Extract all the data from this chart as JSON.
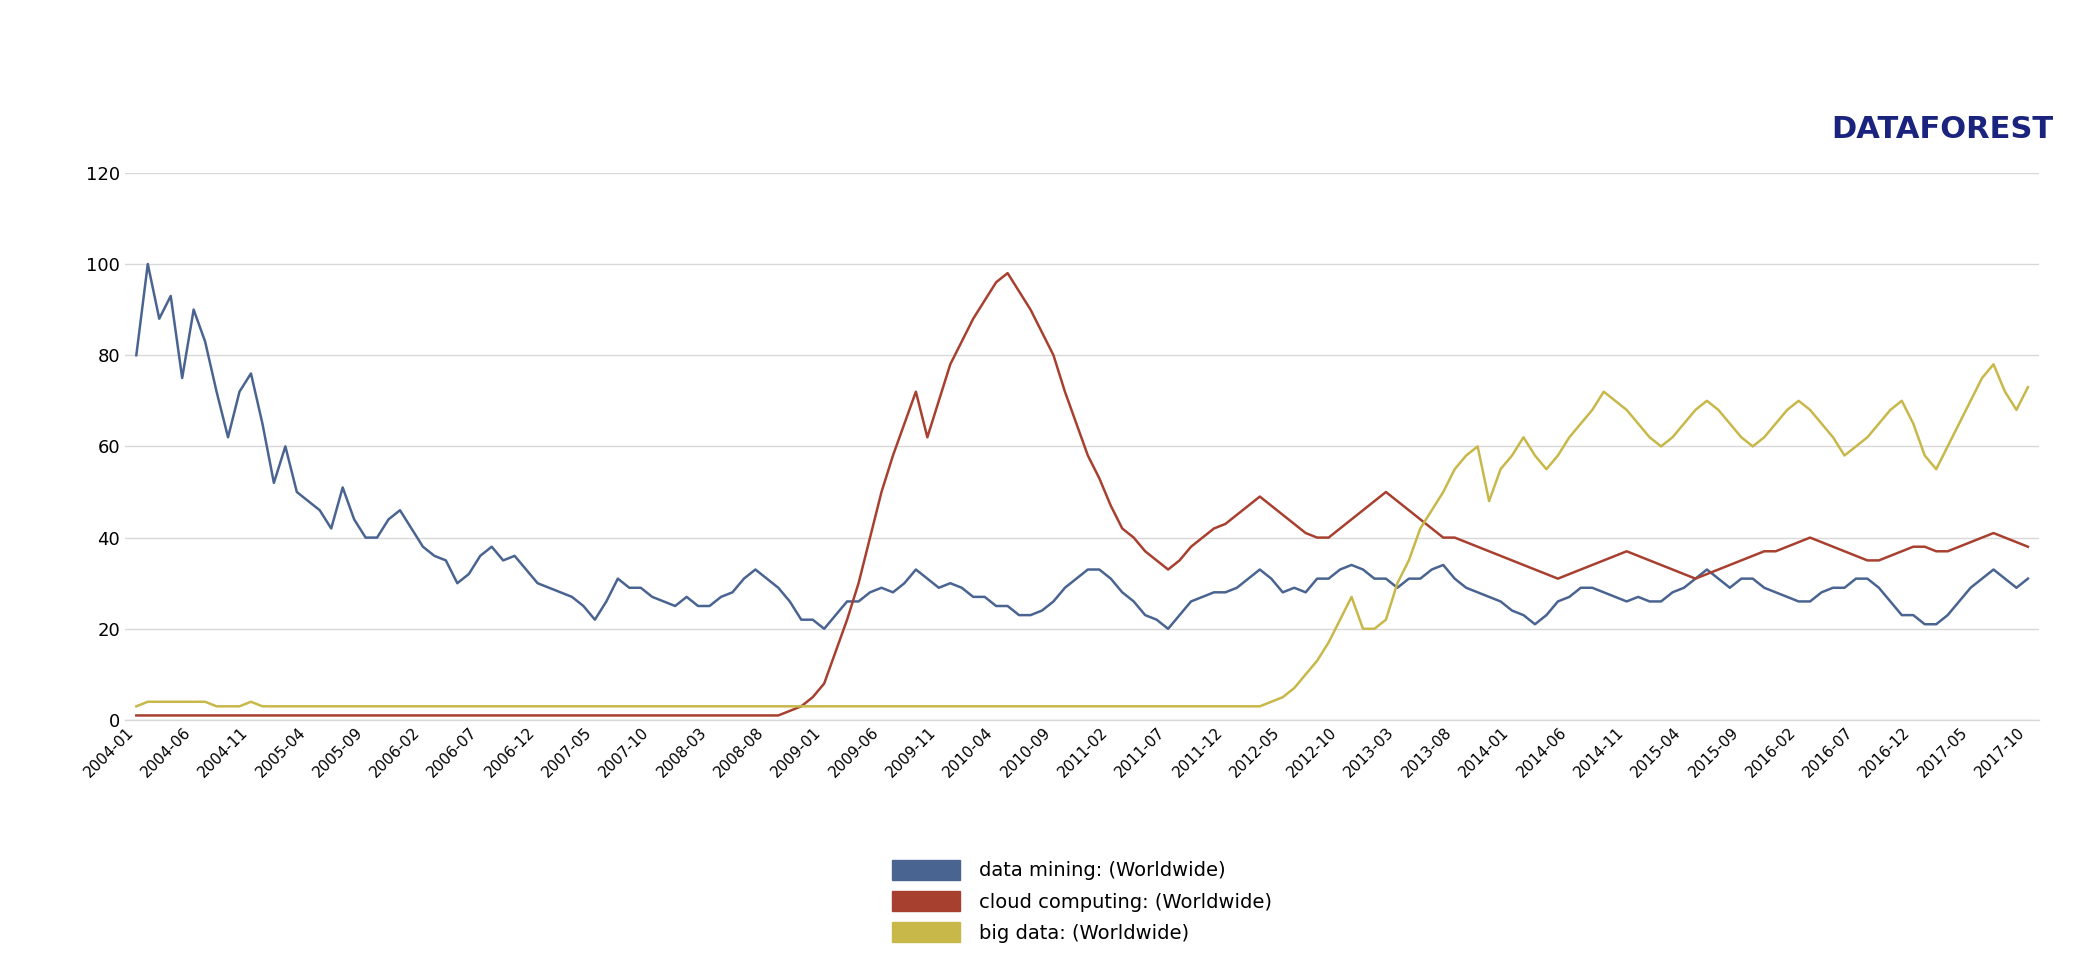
{
  "background_color": "#ffffff",
  "plot_bg_color": "#ffffff",
  "grid_color": "#d8d8d8",
  "ylim": [
    0,
    120
  ],
  "yticks": [
    0,
    20,
    40,
    60,
    80,
    100,
    120
  ],
  "data_mining_color": "#4a6491",
  "cloud_computing_color": "#a84030",
  "big_data_color": "#c8b84a",
  "legend_labels": [
    "data mining: (Worldwide)",
    "cloud computing: (Worldwide)",
    "big data: (Worldwide)"
  ],
  "line_width": 1.8,
  "tick_label_fontsize": 11,
  "ytick_label_fontsize": 13,
  "legend_fontsize": 14,
  "data_mining": [
    80,
    100,
    88,
    93,
    75,
    90,
    83,
    72,
    62,
    72,
    76,
    65,
    52,
    60,
    50,
    48,
    46,
    42,
    51,
    44,
    40,
    40,
    44,
    46,
    42,
    38,
    36,
    35,
    30,
    32,
    36,
    38,
    35,
    36,
    33,
    30,
    29,
    28,
    27,
    25,
    22,
    26,
    31,
    29,
    29,
    27,
    26,
    25,
    27,
    25,
    25,
    27,
    28,
    31,
    33,
    31,
    29,
    26,
    22,
    22,
    20,
    23,
    26,
    26,
    28,
    29,
    28,
    30,
    33,
    31,
    29,
    30,
    29,
    27,
    27,
    25,
    25,
    23,
    23,
    24,
    26,
    29,
    31,
    33,
    33,
    31,
    28,
    26,
    23,
    22,
    20,
    23,
    26,
    27,
    28,
    28,
    29,
    31,
    33,
    31,
    28,
    29,
    28,
    31,
    31,
    33,
    34,
    33,
    31,
    31,
    29,
    31,
    31,
    33,
    34,
    31,
    29,
    28,
    27,
    26,
    24,
    23,
    21,
    23,
    26,
    27,
    29,
    29,
    28,
    27,
    26,
    27,
    26,
    26,
    28,
    29,
    31,
    33,
    31,
    29,
    31,
    31,
    29,
    28,
    27,
    26,
    26,
    28,
    29,
    29,
    31,
    31,
    29,
    26,
    23,
    23,
    21,
    21,
    23,
    26,
    29,
    31,
    33,
    31,
    29,
    31
  ],
  "cloud_computing": [
    1,
    1,
    1,
    1,
    1,
    1,
    1,
    1,
    1,
    1,
    1,
    1,
    1,
    1,
    1,
    1,
    1,
    1,
    1,
    1,
    1,
    1,
    1,
    1,
    1,
    1,
    1,
    1,
    1,
    1,
    1,
    1,
    1,
    1,
    1,
    1,
    1,
    1,
    1,
    1,
    1,
    1,
    1,
    1,
    1,
    1,
    1,
    1,
    1,
    1,
    1,
    1,
    1,
    1,
    1,
    1,
    1,
    2,
    3,
    5,
    8,
    15,
    22,
    30,
    40,
    50,
    58,
    65,
    72,
    62,
    70,
    78,
    83,
    88,
    92,
    96,
    98,
    94,
    90,
    85,
    80,
    72,
    65,
    58,
    53,
    47,
    42,
    40,
    37,
    35,
    33,
    35,
    38,
    40,
    42,
    43,
    45,
    47,
    49,
    47,
    45,
    43,
    41,
    40,
    40,
    42,
    44,
    46,
    48,
    50,
    48,
    46,
    44,
    42,
    40,
    40,
    39,
    38,
    37,
    36,
    35,
    34,
    33,
    32,
    31,
    32,
    33,
    34,
    35,
    36,
    37,
    36,
    35,
    34,
    33,
    32,
    31,
    32,
    33,
    34,
    35,
    36,
    37,
    37,
    38,
    39,
    40,
    39,
    38,
    37,
    36,
    35,
    35,
    36,
    37,
    38,
    38,
    37,
    37,
    38,
    39,
    40,
    41,
    40,
    39,
    38
  ],
  "big_data": [
    3,
    4,
    4,
    4,
    4,
    4,
    4,
    3,
    3,
    3,
    4,
    3,
    3,
    3,
    3,
    3,
    3,
    3,
    3,
    3,
    3,
    3,
    3,
    3,
    3,
    3,
    3,
    3,
    3,
    3,
    3,
    3,
    3,
    3,
    3,
    3,
    3,
    3,
    3,
    3,
    3,
    3,
    3,
    3,
    3,
    3,
    3,
    3,
    3,
    3,
    3,
    3,
    3,
    3,
    3,
    3,
    3,
    3,
    3,
    3,
    3,
    3,
    3,
    3,
    3,
    3,
    3,
    3,
    3,
    3,
    3,
    3,
    3,
    3,
    3,
    3,
    3,
    3,
    3,
    3,
    3,
    3,
    3,
    3,
    3,
    3,
    3,
    3,
    3,
    3,
    3,
    3,
    3,
    3,
    3,
    3,
    3,
    3,
    3,
    4,
    5,
    7,
    10,
    13,
    17,
    22,
    27,
    20,
    20,
    22,
    30,
    35,
    42,
    46,
    50,
    55,
    58,
    60,
    48,
    55,
    58,
    62,
    58,
    55,
    58,
    62,
    65,
    68,
    72,
    70,
    68,
    65,
    62,
    60,
    62,
    65,
    68,
    70,
    68,
    65,
    62,
    60,
    62,
    65,
    68,
    70,
    68,
    65,
    62,
    58,
    60,
    62,
    65,
    68,
    70,
    65,
    58,
    55,
    60,
    65,
    70,
    75,
    78,
    72,
    68,
    73
  ]
}
